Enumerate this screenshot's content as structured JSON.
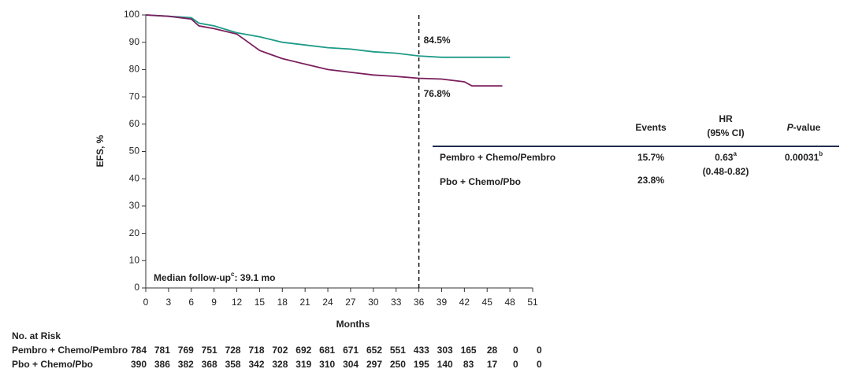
{
  "chart_data": {
    "type": "line",
    "x_label": "Months",
    "y_label": "EFS, %",
    "xlim": [
      0,
      51
    ],
    "ylim": [
      0,
      100
    ],
    "xticks": [
      0,
      3,
      6,
      9,
      12,
      15,
      18,
      21,
      24,
      27,
      30,
      33,
      36,
      39,
      42,
      45,
      48,
      51
    ],
    "yticks": [
      0,
      10,
      20,
      30,
      40,
      50,
      60,
      70,
      80,
      90,
      100
    ],
    "reference_x": 36,
    "series": [
      {
        "name": "Pembro + Chemo/Pembro",
        "color": "#1e9b87",
        "label": "84.5%",
        "x": [
          0,
          3,
          6,
          7,
          9,
          12,
          15,
          18,
          21,
          24,
          27,
          30,
          33,
          36,
          39,
          42,
          45,
          48
        ],
        "values": [
          100,
          99.5,
          99,
          97,
          96,
          93.5,
          92,
          90,
          89,
          88,
          87.5,
          86.5,
          86,
          85,
          84.5,
          84.5,
          84.5,
          84.5
        ]
      },
      {
        "name": "Pbo + Chemo/Pbo",
        "color": "#7b1f5e",
        "label": "76.8%",
        "x": [
          0,
          3,
          6,
          7,
          9,
          12,
          13,
          15,
          16,
          18,
          21,
          24,
          27,
          30,
          33,
          36,
          39,
          42,
          43,
          47
        ],
        "values": [
          100,
          99.5,
          98.5,
          96,
          95,
          93,
          91,
          87,
          86,
          84,
          82,
          80,
          79,
          78,
          77.5,
          76.8,
          76.5,
          75.5,
          74,
          74
        ]
      }
    ],
    "follow_up": {
      "text": "Median follow-up",
      "sup": "c",
      "rest": ": 39.1 mo"
    },
    "summary_table": {
      "headers": {
        "events": "Events",
        "hr": "HR",
        "ci": "(95% CI)",
        "p_italic": "P",
        "p_rest": "-value"
      },
      "rows": [
        {
          "events": "15.7%",
          "hr": "0.63",
          "hr_sup": "a",
          "ci": "(0.48-0.82)",
          "p": "0.00031",
          "p_sup": "b"
        },
        {
          "events": "23.8%"
        }
      ]
    },
    "risk_table": {
      "title": "No. at Risk",
      "rows": [
        [
          784,
          781,
          769,
          751,
          728,
          718,
          702,
          692,
          681,
          671,
          652,
          551,
          433,
          303,
          165,
          28,
          0,
          0
        ],
        [
          390,
          386,
          382,
          368,
          358,
          342,
          328,
          319,
          310,
          304,
          297,
          250,
          195,
          140,
          83,
          17,
          0,
          0
        ]
      ]
    }
  }
}
